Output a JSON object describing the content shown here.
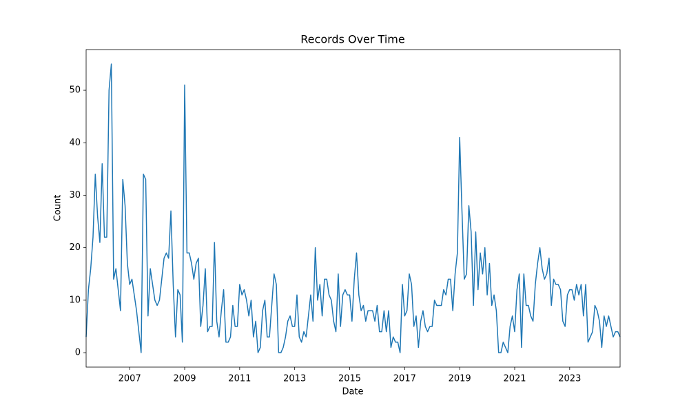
{
  "chart_data": {
    "type": "line",
    "title": "Records Over Time",
    "x_label": "Date",
    "y_label": "Count",
    "x": [
      "2005-06",
      "2005-07",
      "2005-08",
      "2005-09",
      "2005-10",
      "2005-11",
      "2005-12",
      "2006-01",
      "2006-02",
      "2006-03",
      "2006-04",
      "2006-05",
      "2006-06",
      "2006-07",
      "2006-08",
      "2006-09",
      "2006-10",
      "2006-11",
      "2006-12",
      "2007-01",
      "2007-02",
      "2007-03",
      "2007-04",
      "2007-05",
      "2007-06",
      "2007-07",
      "2007-08",
      "2007-09",
      "2007-10",
      "2007-11",
      "2007-12",
      "2008-01",
      "2008-02",
      "2008-03",
      "2008-04",
      "2008-05",
      "2008-06",
      "2008-07",
      "2008-08",
      "2008-09",
      "2008-10",
      "2008-11",
      "2008-12",
      "2009-01",
      "2009-02",
      "2009-03",
      "2009-04",
      "2009-05",
      "2009-06",
      "2009-07",
      "2009-08",
      "2009-09",
      "2009-10",
      "2009-11",
      "2009-12",
      "2010-01",
      "2010-02",
      "2010-03",
      "2010-04",
      "2010-05",
      "2010-06",
      "2010-07",
      "2010-08",
      "2010-09",
      "2010-10",
      "2010-11",
      "2010-12",
      "2011-01",
      "2011-02",
      "2011-03",
      "2011-04",
      "2011-05",
      "2011-06",
      "2011-07",
      "2011-08",
      "2011-09",
      "2011-10",
      "2011-11",
      "2011-12",
      "2012-01",
      "2012-02",
      "2012-03",
      "2012-04",
      "2012-05",
      "2012-06",
      "2012-07",
      "2012-08",
      "2012-09",
      "2012-10",
      "2012-11",
      "2012-12",
      "2013-01",
      "2013-02",
      "2013-03",
      "2013-04",
      "2013-05",
      "2013-06",
      "2013-07",
      "2013-08",
      "2013-09",
      "2013-10",
      "2013-11",
      "2013-12",
      "2014-01",
      "2014-02",
      "2014-03",
      "2014-04",
      "2014-05",
      "2014-06",
      "2014-07",
      "2014-08",
      "2014-09",
      "2014-10",
      "2014-11",
      "2014-12",
      "2015-01",
      "2015-02",
      "2015-03",
      "2015-04",
      "2015-05",
      "2015-06",
      "2015-07",
      "2015-08",
      "2015-09",
      "2015-10",
      "2015-11",
      "2015-12",
      "2016-01",
      "2016-02",
      "2016-03",
      "2016-04",
      "2016-05",
      "2016-06",
      "2016-07",
      "2016-08",
      "2016-09",
      "2016-10",
      "2016-11",
      "2016-12",
      "2017-01",
      "2017-02",
      "2017-03",
      "2017-04",
      "2017-05",
      "2017-06",
      "2017-07",
      "2017-08",
      "2017-09",
      "2017-10",
      "2017-11",
      "2017-12",
      "2018-01",
      "2018-02",
      "2018-03",
      "2018-04",
      "2018-05",
      "2018-06",
      "2018-07",
      "2018-08",
      "2018-09",
      "2018-10",
      "2018-11",
      "2018-12",
      "2019-01",
      "2019-02",
      "2019-03",
      "2019-04",
      "2019-05",
      "2019-06",
      "2019-07",
      "2019-08",
      "2019-09",
      "2019-10",
      "2019-11",
      "2019-12",
      "2020-01",
      "2020-02",
      "2020-03",
      "2020-04",
      "2020-05",
      "2020-06",
      "2020-07",
      "2020-08",
      "2020-09",
      "2020-10",
      "2020-11",
      "2020-12",
      "2021-01",
      "2021-02",
      "2021-03",
      "2021-04",
      "2021-05",
      "2021-06",
      "2021-07",
      "2021-08",
      "2021-09",
      "2021-10",
      "2021-11",
      "2021-12",
      "2022-01",
      "2022-02",
      "2022-03",
      "2022-04",
      "2022-05",
      "2022-06",
      "2022-07",
      "2022-08",
      "2022-09",
      "2022-10",
      "2022-11",
      "2022-12",
      "2023-01",
      "2023-02",
      "2023-03",
      "2023-04",
      "2023-05",
      "2023-06",
      "2023-07",
      "2023-08",
      "2023-09",
      "2023-10",
      "2023-11",
      "2023-12",
      "2024-01",
      "2024-02",
      "2024-03",
      "2024-04",
      "2024-05",
      "2024-06",
      "2024-07",
      "2024-08",
      "2024-09",
      "2024-10",
      "2024-11"
    ],
    "series": [
      {
        "color": "#1f77b4",
        "values": [
          3,
          12,
          16,
          22,
          34,
          26,
          21,
          36,
          22,
          22,
          50,
          55,
          14,
          16,
          12,
          8,
          33,
          28,
          17,
          13,
          14,
          11,
          8,
          4,
          0,
          34,
          33,
          7,
          16,
          13,
          10,
          9,
          10,
          14,
          18,
          19,
          18,
          27,
          13,
          3,
          12,
          11,
          2,
          51,
          19,
          19,
          17,
          14,
          17,
          18,
          5,
          9,
          16,
          4,
          5,
          5,
          21,
          6,
          3,
          8,
          12,
          2,
          2,
          3,
          9,
          5,
          5,
          13,
          11,
          12,
          10,
          7,
          10,
          3,
          6,
          0,
          1,
          8,
          10,
          3,
          3,
          9,
          15,
          13,
          0,
          0,
          1,
          3,
          6,
          7,
          5,
          5,
          11,
          3,
          2,
          4,
          3,
          7,
          11,
          6,
          20,
          10,
          13,
          7,
          14,
          14,
          11,
          10,
          6,
          4,
          15,
          5,
          11,
          12,
          11,
          11,
          6,
          14,
          19,
          11,
          8,
          9,
          6,
          8,
          8,
          8,
          6,
          9,
          4,
          4,
          8,
          4,
          8,
          1,
          3,
          2,
          2,
          0,
          13,
          7,
          8,
          15,
          13,
          5,
          7,
          1,
          6,
          8,
          5,
          4,
          5,
          5,
          10,
          9,
          9,
          9,
          12,
          11,
          14,
          14,
          8,
          15,
          19,
          41,
          27,
          14,
          15,
          28,
          23,
          9,
          23,
          12,
          19,
          15,
          20,
          11,
          17,
          9,
          11,
          8,
          0,
          0,
          2,
          1,
          0,
          5,
          7,
          4,
          12,
          15,
          1,
          15,
          9,
          9,
          7,
          6,
          13,
          17,
          20,
          16,
          14,
          15,
          18,
          9,
          14,
          13,
          13,
          12,
          6,
          5,
          11,
          12,
          12,
          10,
          13,
          11,
          13,
          7,
          13,
          2,
          3,
          4,
          9,
          8,
          6,
          1,
          7,
          5,
          7,
          5,
          3,
          4,
          4,
          3
        ]
      }
    ],
    "xlim": [
      "2005-06",
      "2024-11"
    ],
    "xticks": [
      2007,
      2009,
      2011,
      2013,
      2015,
      2017,
      2019,
      2021,
      2023
    ],
    "ylim": [
      -2.75,
      57.75
    ],
    "yticks": [
      0,
      10,
      20,
      30,
      40,
      50
    ]
  }
}
